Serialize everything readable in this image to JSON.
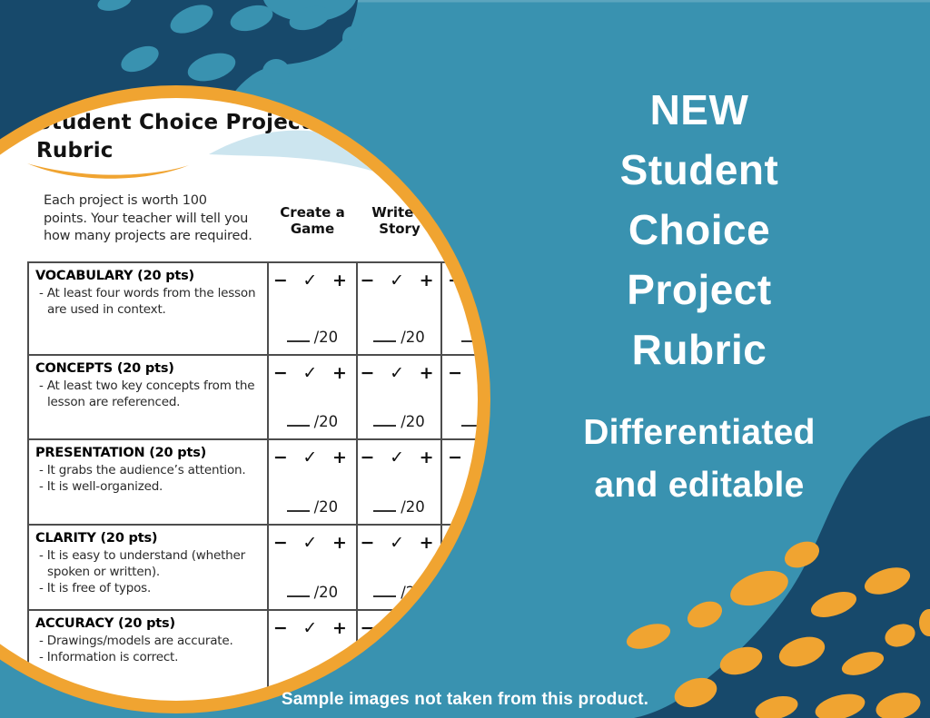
{
  "colors": {
    "background_teal": "#3992B0",
    "navy": "#17496B",
    "orange": "#F0A431",
    "white": "#FFFFFF",
    "light_blue": "#C3E0EC",
    "document_text": "#1E1E1E",
    "table_border": "#4D4D4D"
  },
  "hero": {
    "title_lines": [
      "NEW",
      "Student",
      "Choice",
      "Project",
      "Rubric"
    ],
    "subtitle_lines": [
      "Differentiated",
      "and editable"
    ]
  },
  "footer": {
    "caption": "Sample images not taken from this product."
  },
  "rubric_preview": {
    "title_lines": [
      "Student Choice Project",
      "Rubric"
    ],
    "intro_lines": [
      "Each project is worth 100",
      "points. Your teacher will tell you",
      "how many projects are required."
    ],
    "column_headers": [
      {
        "lines": [
          "Create a",
          "Game"
        ]
      },
      {
        "lines": [
          "Write a",
          "Story"
        ]
      },
      {
        "lines": [
          "",
          ""
        ]
      }
    ],
    "marks": [
      "−",
      "✓",
      "+"
    ],
    "score_denominator": "/20",
    "rows": [
      {
        "title": "VOCABULARY (20 pts)",
        "bullets": [
          "At least four words from the lesson are used in context."
        ]
      },
      {
        "title": "CONCEPTS (20 pts)",
        "bullets": [
          "At least two key concepts from the lesson are referenced."
        ]
      },
      {
        "title": "PRESENTATION (20 pts)",
        "bullets": [
          "It grabs the audience’s attention.",
          "It is well-organized."
        ]
      },
      {
        "title": "CLARITY (20 pts)",
        "bullets": [
          "It is easy to understand (whether spoken or written).",
          "It is free of typos."
        ]
      },
      {
        "title": "ACCURACY (20 pts)",
        "bullets": [
          "Drawings/models are accurate.",
          "Information is correct."
        ]
      }
    ]
  }
}
